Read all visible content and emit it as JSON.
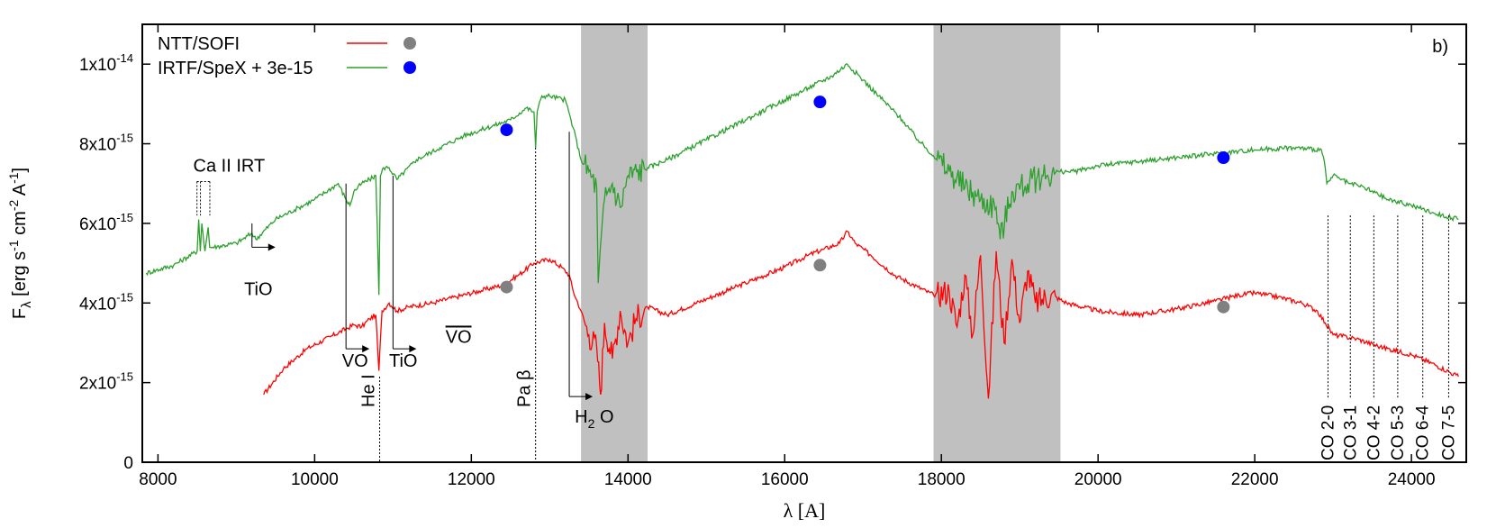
{
  "chart_data": {
    "type": "line",
    "title": "",
    "panel_label": "b)",
    "xlabel": "λ [A]",
    "ylabel": {
      "main": "F",
      "sub": "λ",
      "units_prefix": " [erg s",
      "sup1": "-1",
      "units_mid": " cm",
      "sup2": "-2",
      "units_mid2": " A",
      "sup3": "-1",
      "units_end": "]"
    },
    "xlim": [
      7800,
      24700
    ],
    "ylim": [
      0,
      1.1e-14
    ],
    "x_ticks": [
      8000,
      10000,
      12000,
      14000,
      16000,
      18000,
      20000,
      22000,
      24000
    ],
    "x_tick_labels": [
      "8000",
      "10000",
      "12000",
      "14000",
      "16000",
      "18000",
      "20000",
      "22000",
      "24000"
    ],
    "y_ticks": [
      {
        "value": 0,
        "base": "0",
        "exp": ""
      },
      {
        "value": 2e-15,
        "base": "2x10",
        "exp": "-15"
      },
      {
        "value": 4e-15,
        "base": "4x10",
        "exp": "-15"
      },
      {
        "value": 6e-15,
        "base": "6x10",
        "exp": "-15"
      },
      {
        "value": 8e-15,
        "base": "8x10",
        "exp": "-15"
      },
      {
        "value": 1e-14,
        "base": "1x10",
        "exp": "-14"
      }
    ],
    "grid": false,
    "legend_position": "top-left",
    "shaded_regions": [
      {
        "x0": 13400,
        "x1": 14250,
        "color": "#c0c0c0"
      },
      {
        "x0": 17900,
        "x1": 19520,
        "color": "#c0c0c0"
      }
    ],
    "series": [
      {
        "name": "NTT/SOFI",
        "color": "#ff0000",
        "marker_color": "#808080",
        "x": [
          9350,
          9600,
          9900,
          10200,
          10400,
          10500,
          10600,
          10700,
          10780,
          10820,
          10860,
          10950,
          11050,
          11200,
          11500,
          11800,
          12100,
          12400,
          12600,
          12800,
          13000,
          13150,
          13250,
          13300,
          13400,
          13500,
          13600,
          13650,
          13700,
          13800,
          13900,
          14000,
          14100,
          14250,
          14500,
          15000,
          15500,
          16000,
          16300,
          16500,
          16700,
          16800,
          16900,
          17100,
          17400,
          17700,
          17900,
          18100,
          18200,
          18300,
          18400,
          18500,
          18600,
          18700,
          18800,
          18900,
          19000,
          19100,
          19200,
          19400,
          19600,
          20000,
          20500,
          21000,
          21500,
          21800,
          22000,
          22300,
          22600,
          22800,
          22900,
          23000,
          23300,
          23600,
          24000,
          24300,
          24600
        ],
        "y": [
          1.7e-15,
          2.35e-15,
          2.85e-15,
          3.15e-15,
          3.35e-15,
          3.45e-15,
          3.4e-15,
          3.6e-15,
          3.7e-15,
          2.3e-15,
          3.8e-15,
          4e-15,
          3.8e-15,
          3.9e-15,
          4e-15,
          4.15e-15,
          4.3e-15,
          4.45e-15,
          4.7e-15,
          5e-15,
          5.1e-15,
          4.9e-15,
          4.7e-15,
          4.3e-15,
          3.8e-15,
          3.2e-15,
          2.9e-15,
          1.7e-15,
          3.5e-15,
          2.6e-15,
          3.8e-15,
          3e-15,
          3.6e-15,
          3.9e-15,
          3.7e-15,
          4.1e-15,
          4.5e-15,
          4.9e-15,
          5.2e-15,
          5.35e-15,
          5.5e-15,
          5.8e-15,
          5.5e-15,
          5.2e-15,
          4.7e-15,
          4.4e-15,
          4.2e-15,
          4.3e-15,
          3.4e-15,
          4.7e-15,
          3.2e-15,
          5.2e-15,
          1.6e-15,
          5.3e-15,
          3e-15,
          5.1e-15,
          3.5e-15,
          4.8e-15,
          4e-15,
          4.2e-15,
          4e-15,
          3.8e-15,
          3.7e-15,
          3.85e-15,
          4.05e-15,
          4.2e-15,
          4.25e-15,
          4.15e-15,
          4e-15,
          3.8e-15,
          3.5e-15,
          3.2e-15,
          3.1e-15,
          2.9e-15,
          2.7e-15,
          2.45e-15,
          2.15e-15
        ],
        "markers": [
          {
            "x": 12450,
            "y": 4.4e-15
          },
          {
            "x": 16450,
            "y": 4.95e-15
          },
          {
            "x": 21600,
            "y": 3.9e-15
          }
        ]
      },
      {
        "name": "IRTF/SpeX + 3e-15",
        "color": "#2ca02c",
        "marker_color": "#0000ff",
        "x": [
          7850,
          8200,
          8500,
          8520,
          8540,
          8560,
          8600,
          8640,
          8660,
          8700,
          9000,
          9200,
          9250,
          9500,
          9800,
          10000,
          10300,
          10400,
          10450,
          10500,
          10600,
          10700,
          10780,
          10800,
          10820,
          10840,
          10880,
          10950,
          11050,
          11300,
          11600,
          11900,
          12200,
          12500,
          12700,
          12800,
          12820,
          12840,
          12900,
          13000,
          13200,
          13300,
          13400,
          13500,
          13600,
          13620,
          13700,
          13800,
          13900,
          14000,
          14250,
          14500,
          15000,
          15500,
          16000,
          16300,
          16600,
          16800,
          17000,
          17200,
          17500,
          17700,
          17900,
          18100,
          18300,
          18500,
          18700,
          18750,
          18900,
          19100,
          19300,
          19500,
          19700,
          20000,
          20500,
          21000,
          21500,
          22000,
          22500,
          22850,
          22900,
          22920,
          23000,
          23200,
          23400,
          23700,
          24000,
          24300,
          24600
        ],
        "y": [
          4.75e-15,
          4.95e-15,
          5.3e-15,
          6.1e-15,
          5.3e-15,
          6e-15,
          5.3e-15,
          5.9e-15,
          5.4e-15,
          5.4e-15,
          5.5e-15,
          5.75e-15,
          5.6e-15,
          6.1e-15,
          6.4e-15,
          6.6e-15,
          7e-15,
          6.6e-15,
          6.45e-15,
          6.8e-15,
          7e-15,
          7.1e-15,
          7.2e-15,
          5.9e-15,
          4.2e-15,
          7.2e-15,
          7.4e-15,
          7.4e-15,
          7.1e-15,
          7.6e-15,
          7.9e-15,
          8.2e-15,
          8.4e-15,
          8.6e-15,
          8.9e-15,
          8.8e-15,
          7.9e-15,
          8.8e-15,
          9.2e-15,
          9.2e-15,
          9.1e-15,
          8.4e-15,
          7.6e-15,
          7.3e-15,
          6.9e-15,
          4.5e-15,
          6.6e-15,
          7e-15,
          6.4e-15,
          7.2e-15,
          7.4e-15,
          7.6e-15,
          8.1e-15,
          8.6e-15,
          9.1e-15,
          9.4e-15,
          9.7e-15,
          1e-14,
          9.6e-15,
          9.2e-15,
          8.6e-15,
          8.1e-15,
          7.7e-15,
          7.3e-15,
          6.9e-15,
          6.6e-15,
          6.4e-15,
          5.6e-15,
          6.8e-15,
          7e-15,
          7.2e-15,
          7.3e-15,
          7.3e-15,
          7.45e-15,
          7.55e-15,
          7.65e-15,
          7.75e-15,
          7.85e-15,
          7.9e-15,
          7.85e-15,
          7.4e-15,
          7e-15,
          7.2e-15,
          7e-15,
          6.9e-15,
          6.6e-15,
          6.45e-15,
          6.25e-15,
          6.1e-15
        ],
        "markers": [
          {
            "x": 12450,
            "y": 8.35e-15
          },
          {
            "x": 16450,
            "y": 9.05e-15
          },
          {
            "x": 21600,
            "y": 7.65e-15
          }
        ]
      }
    ],
    "annotations": [
      {
        "id": "ca-ii-irt",
        "text": "Ca II IRT",
        "x": 8450,
        "y": 7.3e-15,
        "lines": [
          8498,
          8542,
          8662
        ],
        "line_top": 7.05e-15,
        "line_bottom": 6.2e-15
      },
      {
        "id": "tio-1",
        "text": "TiO",
        "x": 9100,
        "y": 4.2e-15,
        "edge_x": 9200,
        "edge_top": 6e-15,
        "arrow_y": 5.4e-15
      },
      {
        "id": "vo-1",
        "text": "VO",
        "x": 10350,
        "y": 2.4e-15,
        "edge_x": 10400,
        "edge_top": 7e-15,
        "arrow_y": 2.85e-15
      },
      {
        "id": "tio-2",
        "text": "TiO",
        "x": 10950,
        "y": 2.4e-15,
        "edge_x": 11000,
        "edge_top": 7.2e-15,
        "arrow_y": 2.85e-15
      },
      {
        "id": "vo-2",
        "text": "VO",
        "overline": true,
        "x": 11670,
        "y": 3e-15
      },
      {
        "id": "he-i",
        "text": "He I",
        "x": 10830,
        "y": 2.4e-15,
        "vertical": true
      },
      {
        "id": "pa-beta",
        "text": "Pa β",
        "x": 12820,
        "y": 2.4e-15,
        "vertical": true
      },
      {
        "id": "h2o",
        "text_main": "H",
        "text_sub": "2",
        "text_end": " O",
        "x": 13320,
        "y": 1e-15,
        "edge_x": 13250,
        "edge_top": 8.3e-15,
        "arrow_y": 1.65e-15
      },
      {
        "id": "co-2-0",
        "text": "CO 2-0",
        "x": 22935,
        "y": 4e-16,
        "vertical": true
      },
      {
        "id": "co-3-1",
        "text": "CO 3-1",
        "x": 23220,
        "y": 4e-16,
        "vertical": true
      },
      {
        "id": "co-4-2",
        "text": "CO 4-2",
        "x": 23520,
        "y": 4e-16,
        "vertical": true
      },
      {
        "id": "co-5-3",
        "text": "CO 5-3",
        "x": 23825,
        "y": 4e-16,
        "vertical": true
      },
      {
        "id": "co-6-4",
        "text": "CO 6-4",
        "x": 24145,
        "y": 4e-16,
        "vertical": true
      },
      {
        "id": "co-7-5",
        "text": "CO 7-5",
        "x": 24475,
        "y": 4e-16,
        "vertical": true
      }
    ]
  }
}
